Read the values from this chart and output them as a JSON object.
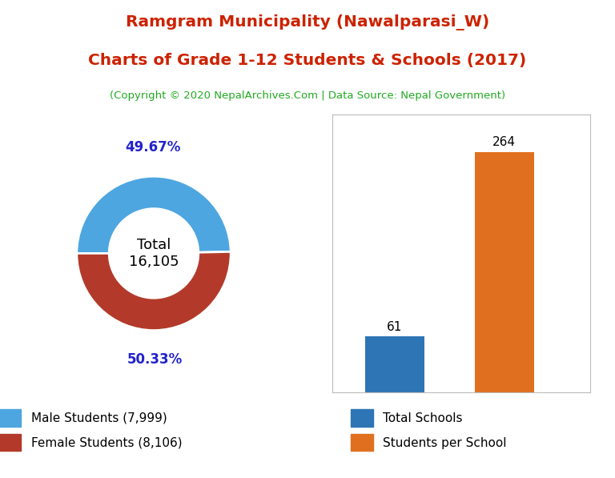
{
  "title_line1": "Ramgram Municipality (Nawalparasi_W)",
  "title_line2": "Charts of Grade 1-12 Students & Schools (2017)",
  "subtitle": "(Copyright © 2020 NepalArchives.Com | Data Source: Nepal Government)",
  "title_color": "#cc2200",
  "subtitle_color": "#22aa22",
  "donut_values": [
    7999,
    8106
  ],
  "donut_colors": [
    "#4da6e0",
    "#b33a2a"
  ],
  "donut_labels": [
    "49.67%",
    "50.33%"
  ],
  "donut_center_text": "Total\n16,105",
  "legend_labels": [
    "Male Students (7,999)",
    "Female Students (8,106)"
  ],
  "bar_categories": [
    "Total Schools",
    "Students per School"
  ],
  "bar_values": [
    61,
    264
  ],
  "bar_colors": [
    "#2e75b6",
    "#e07020"
  ],
  "background_color": "#ffffff",
  "pct_label_color": "#2222cc",
  "bar_label_color": "#000000"
}
